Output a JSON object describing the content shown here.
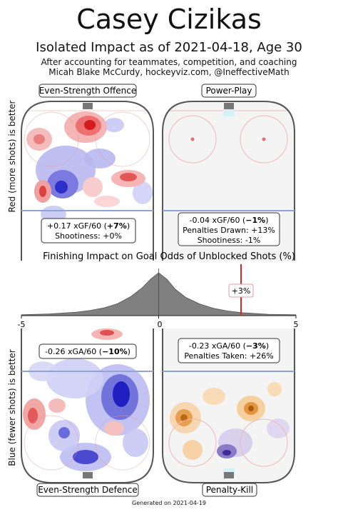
{
  "header": {
    "title": "Casey Cizikas",
    "subtitle": "Isolated Impact as of 2021-04-18, Age 30",
    "note_line1": "After accounting for teammates, competition, and coaching",
    "note_line2": "Micah Blake McCurdy, hockeyviz.com, @IneffectiveMath"
  },
  "y_labels": {
    "top": "Red (more shots) is better",
    "bottom": "Blue (fewer shots) is better"
  },
  "panels": {
    "es_offence": {
      "label": "Even-Strength Offence",
      "line1": "+0.17 xGF/60 (",
      "line1_bold": "+7%",
      "line1_end": ")",
      "line2": "Shootiness: +0%"
    },
    "pp": {
      "label": "Power-Play",
      "line1": "-0.04 xGF/60 (",
      "line1_bold": "−1%",
      "line1_end": ")",
      "line2": "Penalties Drawn: +13%",
      "line3": "Shootiness: -1%"
    },
    "es_defence": {
      "label": "Even-Strength Defence",
      "line1": "-0.26 xGA/60 (",
      "line1_bold": "−10%",
      "line1_end": ")"
    },
    "pk": {
      "label": "Penalty-Kill",
      "line1": "-0.23 xGA/60 (",
      "line1_bold": "−3%",
      "line1_end": ")",
      "line2": "Penalties Taken: +26%"
    }
  },
  "chart_data": {
    "type": "area",
    "title": "Finishing Impact on Goal Odds of Unblocked Shots (%)",
    "xlim": [
      -5,
      5
    ],
    "x_ticks": [
      "-5",
      "0",
      "5"
    ],
    "marker": {
      "value": 3,
      "label": "+3%",
      "color": "#d62728"
    },
    "distribution": {
      "x": [
        -5,
        -4,
        -3,
        -2.5,
        -2,
        -1.5,
        -1,
        -0.6,
        -0.3,
        0,
        0.3,
        0.6,
        1,
        1.5,
        2,
        2.5,
        3,
        4,
        5
      ],
      "density": [
        0.02,
        0.04,
        0.08,
        0.12,
        0.18,
        0.28,
        0.45,
        0.65,
        0.85,
        1.0,
        0.85,
        0.62,
        0.42,
        0.27,
        0.17,
        0.11,
        0.07,
        0.03,
        0.02
      ]
    },
    "colors": {
      "fill": "#808080",
      "positive": "#d62728",
      "negative": "#1f1fd6"
    }
  },
  "footer": {
    "generated": "Generated on 2021-04-19"
  }
}
